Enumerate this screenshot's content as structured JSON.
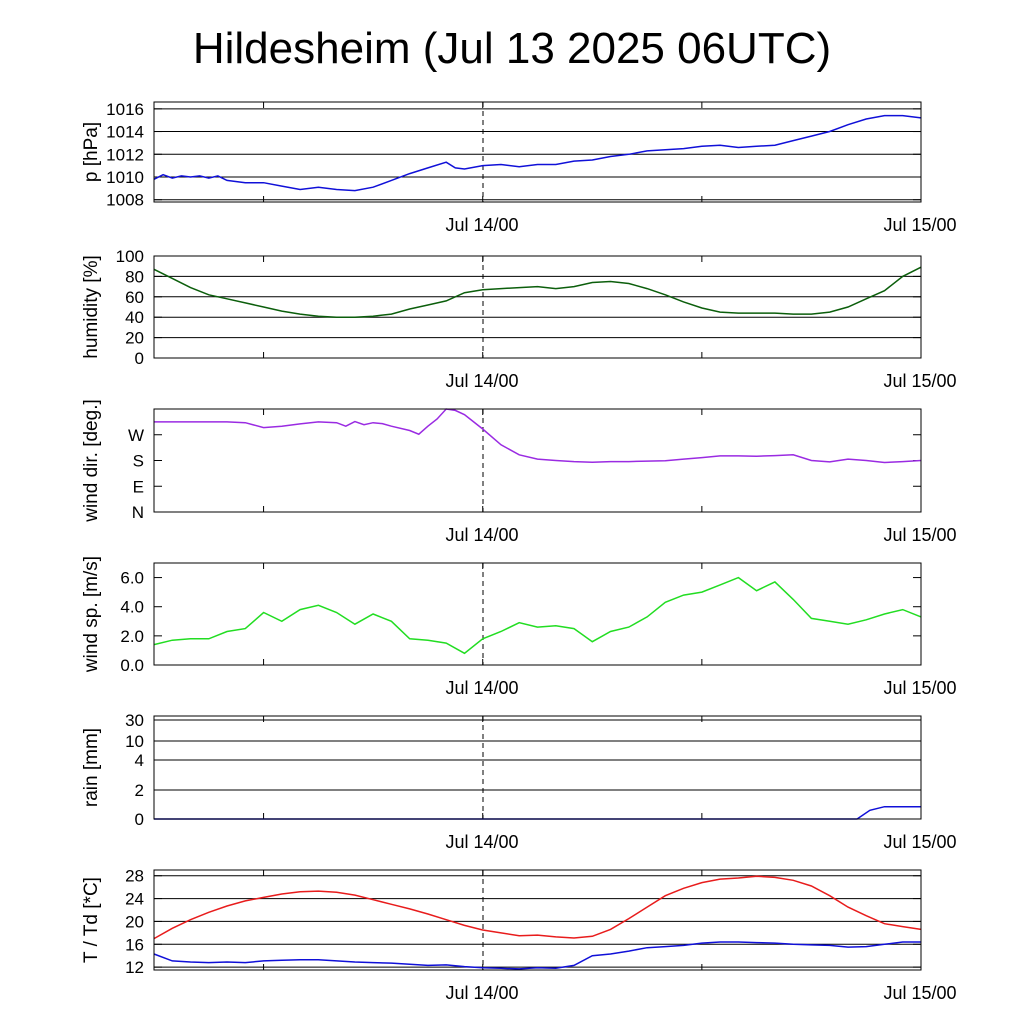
{
  "title": "Hildesheim (Jul 13 2025 06UTC)",
  "colors": {
    "pressure": "#1010d8",
    "humidity": "#0b5e0b",
    "wind_dir": "#9a2be2",
    "wind_speed": "#22dd22",
    "rain": "#1010d8",
    "temperature": "#e81c1c",
    "dewpoint": "#1010d8"
  },
  "chart_data": [
    {
      "type": "line",
      "ylabel": "p [hPa]",
      "yticks": [
        "1008",
        "1010",
        "1012",
        "1014",
        "1016"
      ],
      "ylim": [
        1007.8,
        1016.6
      ],
      "grid": true,
      "x_tick_labels": [
        "Jul 14/00",
        "Jul 15/00"
      ],
      "x_unit": "hours since Jul 13 06UTC",
      "xlim": [
        0,
        42
      ],
      "series": [
        {
          "x": [
            0,
            0.5,
            1,
            1.5,
            2,
            2.5,
            3,
            3.5,
            4,
            5,
            6,
            7,
            8,
            9,
            10,
            11,
            12,
            13,
            14,
            15,
            16,
            16.5,
            17,
            18,
            19,
            20,
            21,
            22,
            23,
            24,
            25,
            26,
            27,
            28,
            29,
            30,
            31,
            32,
            33,
            34,
            35,
            36,
            37,
            38,
            39,
            40,
            41,
            42
          ],
          "y": [
            1009.8,
            1010.2,
            1009.9,
            1010.1,
            1010,
            1010.1,
            1009.9,
            1010.1,
            1009.7,
            1009.5,
            1009.5,
            1009.2,
            1008.9,
            1009.1,
            1008.9,
            1008.8,
            1009.1,
            1009.7,
            1010.3,
            1010.8,
            1011.3,
            1010.8,
            1010.7,
            1011,
            1011.1,
            1010.9,
            1011.1,
            1011.1,
            1011.4,
            1011.5,
            1011.8,
            1012,
            1012.3,
            1012.4,
            1012.5,
            1012.7,
            1012.8,
            1012.6,
            1012.7,
            1012.8,
            1013.2,
            1013.6,
            1014,
            1014.6,
            1015.1,
            1015.4,
            1015.4,
            1015.2
          ]
        }
      ]
    },
    {
      "type": "line",
      "ylabel": "humidity [%]",
      "yticks": [
        "0",
        "20",
        "40",
        "60",
        "80",
        "100"
      ],
      "ylim": [
        0,
        100
      ],
      "grid": true,
      "x_tick_labels": [
        "Jul 14/00",
        "Jul 15/00"
      ],
      "xlim": [
        0,
        42
      ],
      "series": [
        {
          "x": [
            0,
            1,
            2,
            3,
            4,
            5,
            6,
            7,
            8,
            9,
            10,
            11,
            12,
            13,
            14,
            15,
            16,
            17,
            18,
            19,
            20,
            21,
            22,
            23,
            24,
            25,
            26,
            27,
            28,
            29,
            30,
            31,
            32,
            33,
            34,
            35,
            36,
            37,
            38,
            39,
            40,
            41,
            42
          ],
          "y": [
            87,
            78,
            69,
            62,
            58,
            54,
            50,
            46,
            43,
            41,
            40,
            40,
            41,
            43,
            48,
            52,
            56,
            64,
            67,
            68,
            69,
            70,
            68,
            70,
            74,
            75,
            73,
            68,
            62,
            55,
            49,
            45,
            44,
            44,
            44,
            43,
            43,
            45,
            50,
            58,
            66,
            80,
            89
          ]
        }
      ]
    },
    {
      "type": "line",
      "ylabel": "wind dir. [deg.]",
      "yticks": [
        "N",
        "E",
        "S",
        "W"
      ],
      "ylim": [
        0,
        360
      ],
      "grid": false,
      "x_tick_labels": [
        "Jul 14/00",
        "Jul 15/00"
      ],
      "xlim": [
        0,
        42
      ],
      "series": [
        {
          "x": [
            0,
            1,
            2,
            3,
            4,
            5,
            6,
            7,
            8,
            9,
            10,
            10.5,
            11,
            11.5,
            12,
            12.5,
            13,
            14,
            14.5,
            15,
            15.5,
            16,
            16.5,
            17,
            18,
            19,
            20,
            21,
            22,
            23,
            24,
            25,
            26,
            27,
            28,
            29,
            30,
            31,
            32,
            33,
            34,
            35,
            36,
            37,
            38,
            39,
            40,
            41,
            42
          ],
          "y": [
            315,
            315,
            315,
            315,
            315,
            312,
            295,
            300,
            308,
            315,
            312,
            300,
            316,
            305,
            312,
            309,
            300,
            285,
            272,
            300,
            325,
            360,
            355,
            340,
            290,
            235,
            200,
            185,
            180,
            176,
            174,
            176,
            176,
            178,
            179,
            185,
            190,
            196,
            196,
            195,
            197,
            200,
            180,
            175,
            185,
            180,
            173,
            176,
            180
          ]
        }
      ]
    },
    {
      "type": "line",
      "ylabel": "wind sp. [m/s]",
      "yticks": [
        "0.0",
        "2.0",
        "4.0",
        "6.0"
      ],
      "ylim": [
        0,
        7
      ],
      "grid": false,
      "x_tick_labels": [
        "Jul 14/00",
        "Jul 15/00"
      ],
      "xlim": [
        0,
        42
      ],
      "series": [
        {
          "x": [
            0,
            1,
            2,
            3,
            4,
            5,
            6,
            7,
            8,
            9,
            10,
            11,
            12,
            13,
            14,
            15,
            16,
            17,
            18,
            19,
            20,
            21,
            22,
            23,
            24,
            25,
            26,
            27,
            28,
            29,
            30,
            31,
            32,
            33,
            34,
            35,
            36,
            37,
            38,
            39,
            40,
            41,
            42
          ],
          "y": [
            1.4,
            1.7,
            1.8,
            1.8,
            2.3,
            2.5,
            3.6,
            3.0,
            3.8,
            4.1,
            3.6,
            2.8,
            3.5,
            3.0,
            1.8,
            1.7,
            1.5,
            0.8,
            1.8,
            2.3,
            2.9,
            2.6,
            2.7,
            2.5,
            1.6,
            2.3,
            2.6,
            3.3,
            4.3,
            4.8,
            5.0,
            5.5,
            6.0,
            5.1,
            5.7,
            4.5,
            3.2,
            3.0,
            2.8,
            3.1,
            3.5,
            3.8,
            3.3
          ]
        }
      ]
    },
    {
      "type": "line",
      "ylabel": "rain [mm]",
      "yticks": [
        "0",
        "2",
        "4",
        "10",
        "30"
      ],
      "y_scale": "sqrt-like",
      "grid": true,
      "x_tick_labels": [
        "Jul 14/00",
        "Jul 15/00"
      ],
      "xlim": [
        0,
        42
      ],
      "series": [
        {
          "x": [
            0,
            10,
            20,
            30,
            38.5,
            39.2,
            40,
            42
          ],
          "y": [
            0,
            0,
            0,
            0,
            0,
            0.6,
            0.85,
            0.85
          ]
        }
      ]
    },
    {
      "type": "line",
      "ylabel": "T / Td [*C]",
      "yticks": [
        "12",
        "16",
        "20",
        "24",
        "28"
      ],
      "ylim": [
        11.5,
        29
      ],
      "grid": true,
      "x_tick_labels": [
        "Jul 14/00",
        "Jul 15/00"
      ],
      "xlim": [
        0,
        42
      ],
      "series": [
        {
          "x": [
            0,
            1,
            2,
            3,
            4,
            5,
            6,
            7,
            8,
            9,
            10,
            11,
            12,
            13,
            14,
            15,
            16,
            17,
            18,
            19,
            20,
            21,
            22,
            23,
            24,
            25,
            26,
            27,
            28,
            29,
            30,
            31,
            32,
            33,
            34,
            35,
            36,
            37,
            38,
            39,
            40,
            41,
            42
          ],
          "y": [
            17,
            18.8,
            20.3,
            21.6,
            22.7,
            23.6,
            24.2,
            24.8,
            25.2,
            25.3,
            25.1,
            24.6,
            23.8,
            23,
            22.2,
            21.3,
            20.3,
            19.3,
            18.5,
            18,
            17.5,
            17.6,
            17.3,
            17.1,
            17.4,
            18.6,
            20.5,
            22.5,
            24.5,
            25.8,
            26.8,
            27.4,
            27.6,
            27.9,
            27.7,
            27.2,
            26.2,
            24.5,
            22.5,
            21,
            19.6,
            19.1,
            18.6
          ]
        },
        {
          "x": [
            0,
            1,
            2,
            3,
            4,
            5,
            6,
            7,
            8,
            9,
            10,
            11,
            12,
            13,
            14,
            15,
            16,
            17,
            18,
            19,
            20,
            21,
            22,
            23,
            24,
            25,
            26,
            27,
            28,
            29,
            30,
            31,
            32,
            33,
            34,
            35,
            36,
            37,
            38,
            39,
            40,
            41,
            42
          ],
          "y": [
            14.3,
            13.1,
            12.9,
            12.8,
            12.9,
            12.8,
            13.1,
            13.2,
            13.3,
            13.3,
            13.1,
            12.9,
            12.8,
            12.7,
            12.5,
            12.3,
            12.4,
            12.1,
            11.9,
            11.8,
            11.7,
            11.9,
            11.8,
            12.3,
            14,
            14.3,
            14.8,
            15.4,
            15.6,
            15.8,
            16.2,
            16.4,
            16.4,
            16.3,
            16.2,
            16.0,
            15.9,
            15.8,
            15.5,
            15.6,
            16,
            16.4,
            16.4
          ]
        }
      ]
    }
  ]
}
